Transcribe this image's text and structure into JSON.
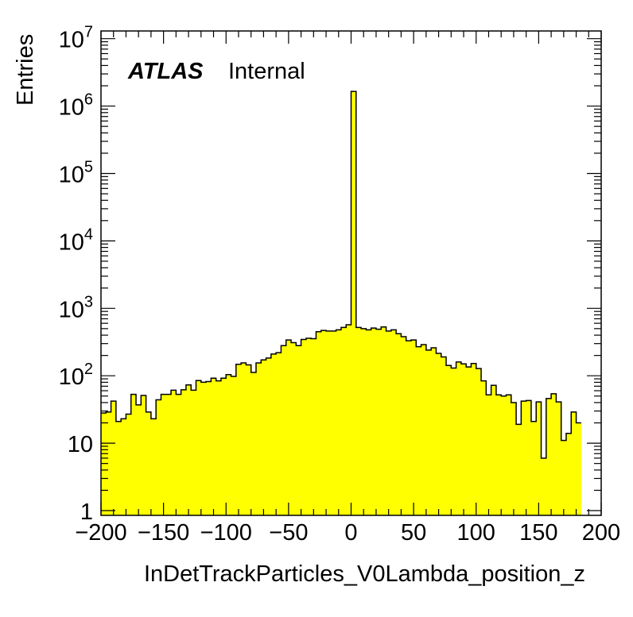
{
  "chart_data": {
    "type": "histogram",
    "title": "",
    "xlabel": "InDetTrackParticles_V0Lambda_position_z",
    "ylabel": "Entries",
    "atlas_label": "ATLAS",
    "atlas_sublabel": "Internal",
    "fill_color": "#ffff00",
    "line_color": "#000000",
    "xlim": [
      -200,
      200
    ],
    "ylim": [
      0.85,
      13000000
    ],
    "log_y": true,
    "bin_width": 4,
    "x_ticks": [
      {
        "value": -200,
        "label": "−200"
      },
      {
        "value": -150,
        "label": "−150"
      },
      {
        "value": -100,
        "label": "−100"
      },
      {
        "value": -50,
        "label": "−50"
      },
      {
        "value": 0,
        "label": "0"
      },
      {
        "value": 50,
        "label": "50"
      },
      {
        "value": 100,
        "label": "100"
      },
      {
        "value": 150,
        "label": "150"
      },
      {
        "value": 200,
        "label": "200"
      }
    ],
    "y_ticks": [
      {
        "value": 1,
        "base": "1",
        "exp": ""
      },
      {
        "value": 10,
        "base": "10",
        "exp": ""
      },
      {
        "value": 100,
        "base": "10",
        "exp": "2"
      },
      {
        "value": 1000,
        "base": "10",
        "exp": "3"
      },
      {
        "value": 10000,
        "base": "10",
        "exp": "4"
      },
      {
        "value": 100000,
        "base": "10",
        "exp": "5"
      },
      {
        "value": 1000000,
        "base": "10",
        "exp": "6"
      },
      {
        "value": 10000000,
        "base": "10",
        "exp": "7"
      }
    ],
    "bins": [
      {
        "x": -200,
        "y": 28
      },
      {
        "x": -196,
        "y": 29
      },
      {
        "x": -192,
        "y": 42
      },
      {
        "x": -188,
        "y": 21
      },
      {
        "x": -184,
        "y": 23
      },
      {
        "x": -180,
        "y": 27
      },
      {
        "x": -176,
        "y": 53
      },
      {
        "x": -172,
        "y": 37
      },
      {
        "x": -168,
        "y": 51
      },
      {
        "x": -164,
        "y": 29
      },
      {
        "x": -160,
        "y": 23
      },
      {
        "x": -156,
        "y": 44
      },
      {
        "x": -152,
        "y": 53
      },
      {
        "x": -148,
        "y": 53
      },
      {
        "x": -144,
        "y": 61
      },
      {
        "x": -140,
        "y": 53
      },
      {
        "x": -136,
        "y": 62
      },
      {
        "x": -132,
        "y": 73
      },
      {
        "x": -128,
        "y": 61
      },
      {
        "x": -124,
        "y": 85
      },
      {
        "x": -120,
        "y": 80
      },
      {
        "x": -116,
        "y": 82
      },
      {
        "x": -112,
        "y": 92
      },
      {
        "x": -108,
        "y": 84
      },
      {
        "x": -104,
        "y": 92
      },
      {
        "x": -100,
        "y": 104
      },
      {
        "x": -96,
        "y": 98
      },
      {
        "x": -92,
        "y": 148
      },
      {
        "x": -88,
        "y": 155
      },
      {
        "x": -84,
        "y": 145
      },
      {
        "x": -80,
        "y": 112
      },
      {
        "x": -76,
        "y": 155
      },
      {
        "x": -72,
        "y": 172
      },
      {
        "x": -68,
        "y": 183
      },
      {
        "x": -64,
        "y": 210
      },
      {
        "x": -60,
        "y": 220
      },
      {
        "x": -56,
        "y": 280
      },
      {
        "x": -52,
        "y": 340
      },
      {
        "x": -48,
        "y": 310
      },
      {
        "x": -44,
        "y": 280
      },
      {
        "x": -40,
        "y": 345
      },
      {
        "x": -36,
        "y": 360
      },
      {
        "x": -32,
        "y": 355
      },
      {
        "x": -28,
        "y": 450
      },
      {
        "x": -24,
        "y": 470
      },
      {
        "x": -20,
        "y": 460
      },
      {
        "x": -16,
        "y": 460
      },
      {
        "x": -12,
        "y": 480
      },
      {
        "x": -8,
        "y": 520
      },
      {
        "x": -4,
        "y": 570
      },
      {
        "x": 0,
        "y": 1650000
      },
      {
        "x": 4,
        "y": 520
      },
      {
        "x": 8,
        "y": 500
      },
      {
        "x": 12,
        "y": 480
      },
      {
        "x": 16,
        "y": 510
      },
      {
        "x": 20,
        "y": 490
      },
      {
        "x": 24,
        "y": 530
      },
      {
        "x": 28,
        "y": 460
      },
      {
        "x": 32,
        "y": 480
      },
      {
        "x": 36,
        "y": 420
      },
      {
        "x": 40,
        "y": 380
      },
      {
        "x": 44,
        "y": 330
      },
      {
        "x": 48,
        "y": 340
      },
      {
        "x": 52,
        "y": 270
      },
      {
        "x": 56,
        "y": 290
      },
      {
        "x": 60,
        "y": 240
      },
      {
        "x": 64,
        "y": 260
      },
      {
        "x": 68,
        "y": 215
      },
      {
        "x": 72,
        "y": 190
      },
      {
        "x": 76,
        "y": 142
      },
      {
        "x": 80,
        "y": 130
      },
      {
        "x": 84,
        "y": 160
      },
      {
        "x": 88,
        "y": 150
      },
      {
        "x": 92,
        "y": 135
      },
      {
        "x": 96,
        "y": 152
      },
      {
        "x": 100,
        "y": 128
      },
      {
        "x": 104,
        "y": 84
      },
      {
        "x": 108,
        "y": 52
      },
      {
        "x": 112,
        "y": 72
      },
      {
        "x": 116,
        "y": 52
      },
      {
        "x": 120,
        "y": 50
      },
      {
        "x": 124,
        "y": 52
      },
      {
        "x": 128,
        "y": 40
      },
      {
        "x": 132,
        "y": 19
      },
      {
        "x": 136,
        "y": 42
      },
      {
        "x": 140,
        "y": 43
      },
      {
        "x": 144,
        "y": 21
      },
      {
        "x": 148,
        "y": 41
      },
      {
        "x": 152,
        "y": 6
      },
      {
        "x": 156,
        "y": 46
      },
      {
        "x": 160,
        "y": 54
      },
      {
        "x": 164,
        "y": 41
      },
      {
        "x": 168,
        "y": 11
      },
      {
        "x": 172,
        "y": 14
      },
      {
        "x": 176,
        "y": 29
      },
      {
        "x": 180,
        "y": 20
      }
    ]
  }
}
